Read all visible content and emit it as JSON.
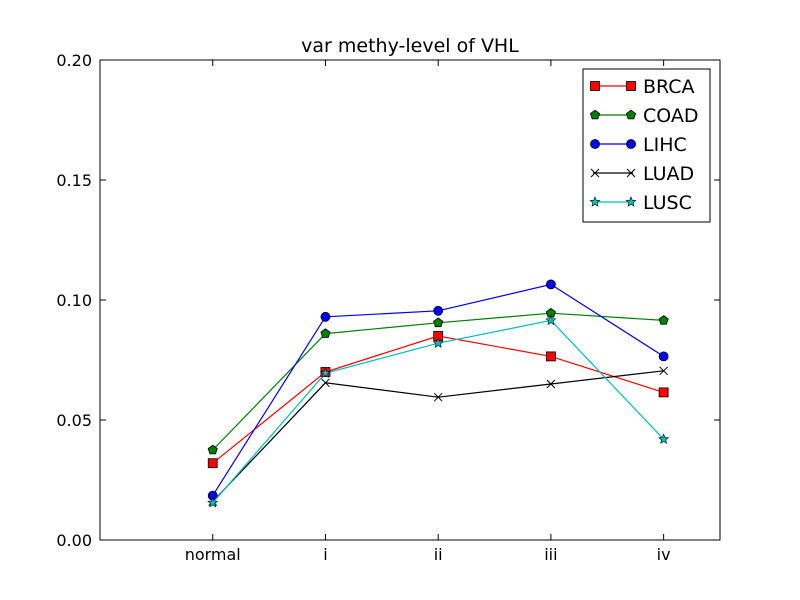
{
  "chart_data": {
    "type": "line",
    "title": "var methy-level of VHL",
    "xlabel": "",
    "ylabel": "",
    "categories": [
      "normal",
      "i",
      "ii",
      "iii",
      "iv"
    ],
    "ylim": [
      0.0,
      0.2
    ],
    "yticks": [
      0.0,
      0.05,
      0.1,
      0.15,
      0.2
    ],
    "ytick_labels": [
      "0.00",
      "0.05",
      "0.10",
      "0.15",
      "0.20"
    ],
    "grid": false,
    "legend_position": "top-right",
    "series": [
      {
        "name": "BRCA",
        "color": "#ff0000",
        "marker": "square",
        "values": [
          0.032,
          0.07,
          0.085,
          0.0765,
          0.0615
        ]
      },
      {
        "name": "COAD",
        "color": "#008000",
        "marker": "pentagon",
        "values": [
          0.0375,
          0.086,
          0.0905,
          0.0945,
          0.0915
        ]
      },
      {
        "name": "LIHC",
        "color": "#0000ff",
        "marker": "circle",
        "values": [
          0.0185,
          0.093,
          0.0955,
          0.1065,
          0.0765
        ]
      },
      {
        "name": "LUAD",
        "color": "#000000",
        "marker": "x",
        "values": [
          0.016,
          0.0655,
          0.0595,
          0.065,
          0.0705
        ]
      },
      {
        "name": "LUSC",
        "color": "#00bfbf",
        "marker": "star",
        "values": [
          0.0155,
          0.0695,
          0.082,
          0.0915,
          0.042
        ]
      }
    ]
  }
}
